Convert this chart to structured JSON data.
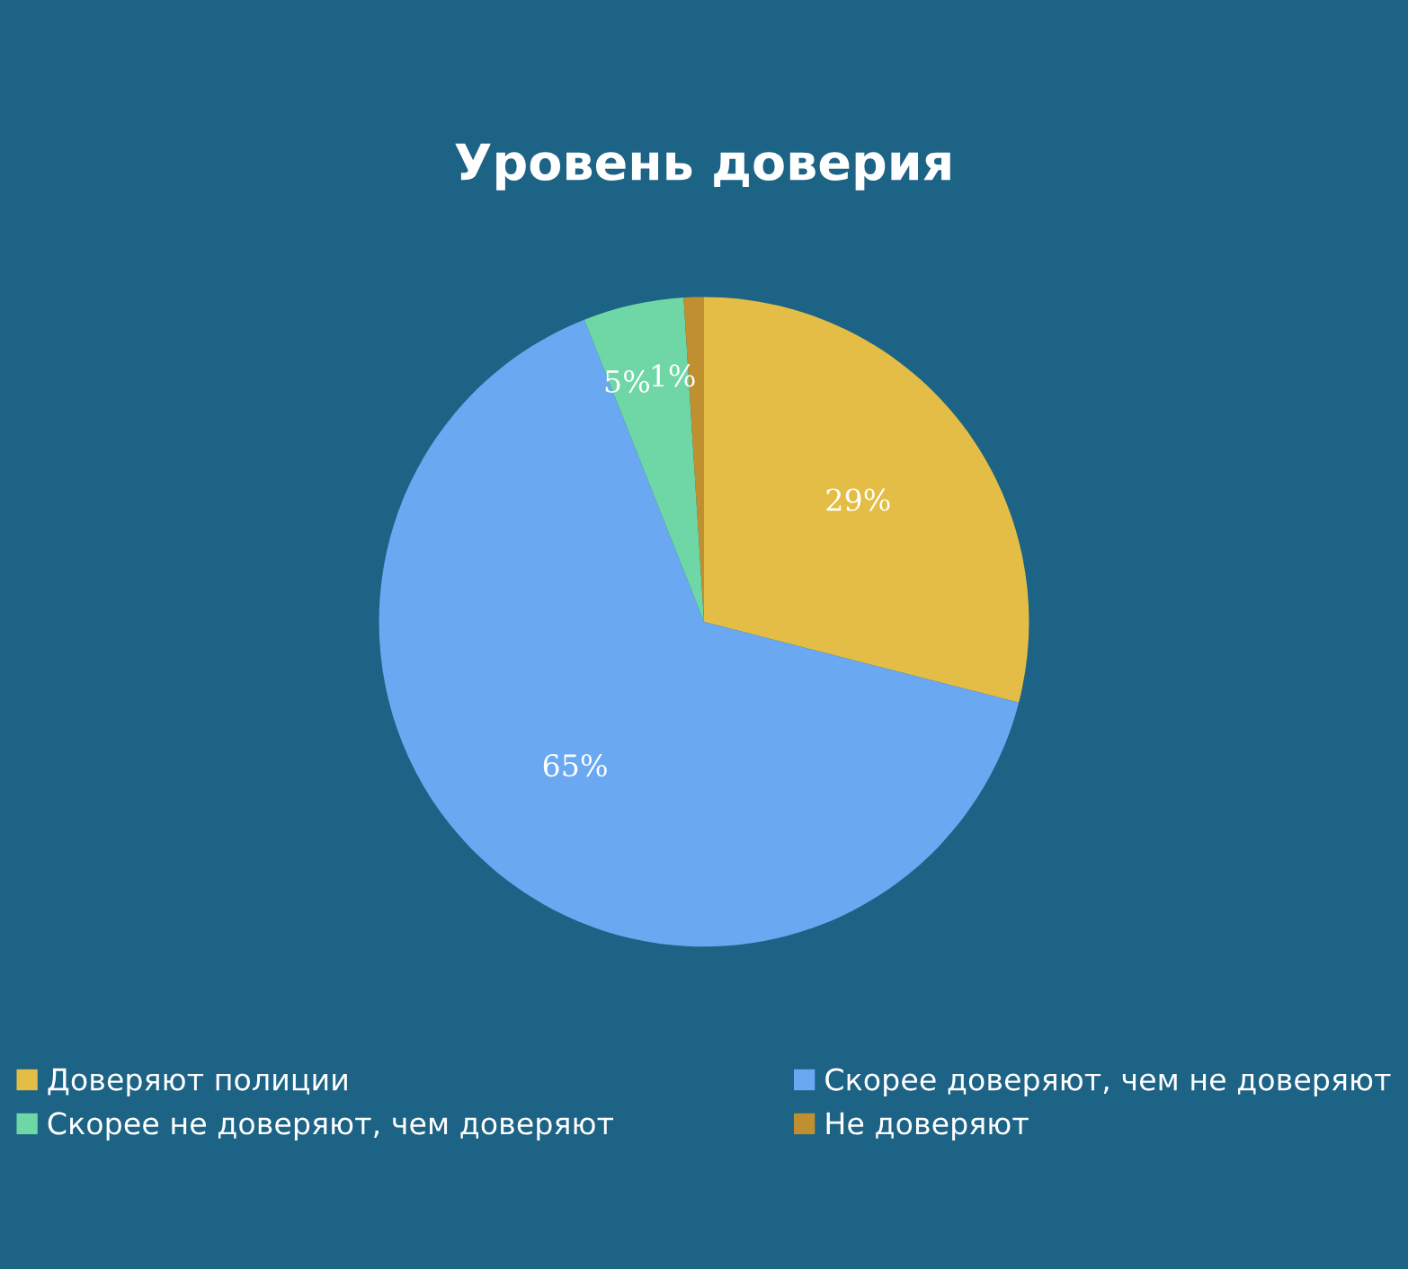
{
  "chart_data": {
    "type": "pie",
    "title": "Уровень доверия",
    "categories": [
      "Доверяют полиции",
      "Скорее доверяют, чем не доверяют",
      "Скорее не доверяют, чем доверяют",
      "Не доверяют"
    ],
    "values": [
      29,
      65,
      5,
      1
    ],
    "colors": [
      "#e3bd45",
      "#6aa8f2",
      "#6fd6a6",
      "#c09030"
    ],
    "value_labels": [
      "29%",
      "65%",
      "5%",
      "1%"
    ],
    "legend": "bottom"
  }
}
